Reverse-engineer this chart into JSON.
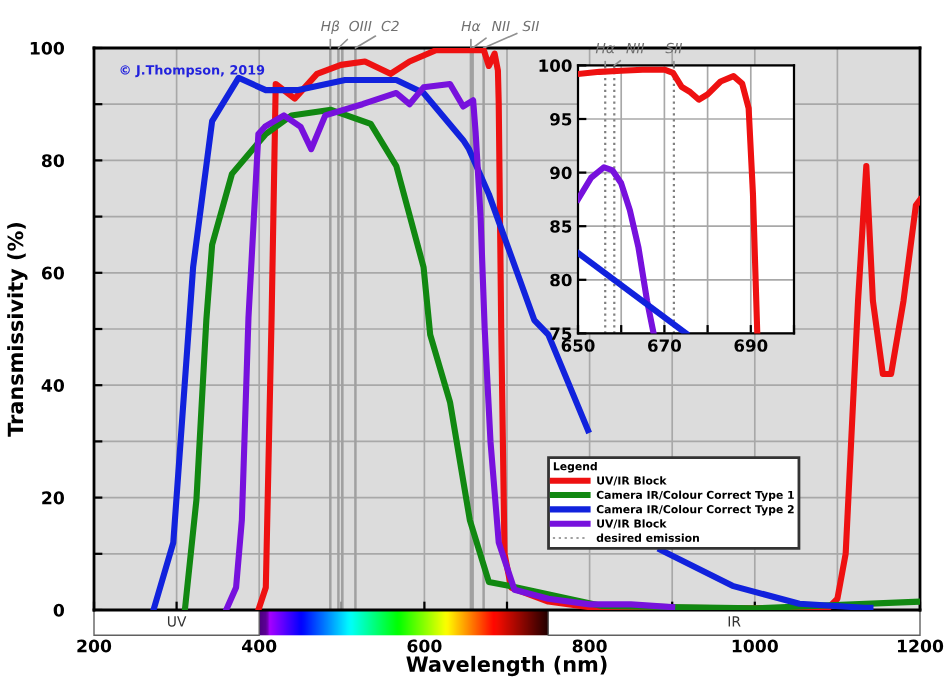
{
  "chart_data": [
    {
      "type": "line",
      "xlabel": "Wavelength (nm)",
      "ylabel": "Transmissivity (%)",
      "legend_title": "Legend",
      "legend": "bottom right",
      "grid": true,
      "annotations": [
        "© J.Thompson, 2019",
        "UV",
        "IR",
        "desired emission"
      ],
      "xlim": [
        200,
        1200
      ],
      "ylim": [
        0,
        100
      ],
      "xticks": [
        200,
        {
          "value": 300,
          "label": null
        },
        400,
        {
          "value": 500,
          "label": null
        },
        600,
        {
          "value": 700,
          "label": null
        },
        800,
        {
          "value": 900,
          "label": null
        },
        1000,
        {
          "value": 1100,
          "label": null
        },
        1200
      ],
      "yticks": [
        0,
        {
          "value": 10,
          "label": null
        },
        20,
        {
          "value": 30,
          "label": null
        },
        40,
        {
          "value": 50,
          "label": null
        },
        60,
        {
          "value": 70,
          "label": null
        },
        80,
        {
          "value": 90,
          "label": null
        },
        100
      ],
      "ref_lines": [
        {
          "axis": "x",
          "value": 486.1,
          "label": "Hβ",
          "color": "#a0a0a0",
          "line_style": "solid"
        },
        {
          "axis": "x",
          "value": 495.9,
          "label": "OIII",
          "color": "#a0a0a0",
          "line_style": "solid"
        },
        {
          "axis": "x",
          "value": 500.7,
          "label": null,
          "color": "#a0a0a0",
          "line_style": "solid"
        },
        {
          "axis": "x",
          "value": 516.5,
          "label": "C2",
          "color": "#a0a0a0",
          "line_style": "solid"
        },
        {
          "axis": "x",
          "value": 656.3,
          "label": "Hα",
          "color": "#a0a0a0",
          "line_style": "solid"
        },
        {
          "axis": "x",
          "value": 658.4,
          "label": "NII",
          "color": "#a0a0a0",
          "line_style": "solid"
        },
        {
          "axis": "x",
          "value": 671.7,
          "label": "SII",
          "color": "#a0a0a0",
          "line_style": "solid"
        }
      ],
      "series": [
        {
          "name": "UV/IR Block",
          "color": "#ee1111",
          "x": [
            399,
            408,
            415,
            420,
            443,
            470,
            499,
            528,
            559,
            582,
            614,
            654,
            672,
            678,
            685,
            689,
            690,
            693,
            697,
            705,
            750,
            800,
            1000,
            1090,
            1100,
            1110,
            1125,
            1135,
            1143,
            1155,
            1165,
            1180,
            1195,
            1200
          ],
          "values": [
            0,
            4,
            52,
            93.6,
            91,
            95.4,
            97,
            97.6,
            95.4,
            97.6,
            99.6,
            99.6,
            99.6,
            96.8,
            99,
            96,
            90,
            50,
            10,
            4,
            1.5,
            0.5,
            0.3,
            0.5,
            2,
            10,
            55,
            79,
            55,
            42,
            42,
            55,
            72,
            73
          ]
        },
        {
          "name": "Camera IR/Colour Correct Type 1",
          "color": "#118811",
          "x": [
            310,
            324,
            336,
            343,
            367,
            408,
            439,
            487,
            535,
            566,
            599,
            607,
            631,
            655,
            678,
            702,
            815,
            1000,
            1200
          ],
          "values": [
            0,
            19.6,
            51.6,
            65,
            77.6,
            84.7,
            88,
            89,
            86.5,
            79,
            61,
            49,
            37,
            16,
            5,
            4.3,
            0.7,
            0.3,
            1.5
          ]
        },
        {
          "name": "Camera IR/Colour Correct Type 2",
          "color": "#1122dd",
          "x": [
            272,
            296,
            320,
            343,
            375,
            408,
            446,
            504,
            566,
            599,
            647,
            654,
            678,
            733,
            750,
            798,
            830,
            886,
            973,
            1054,
            1133,
            1140
          ],
          "values": [
            0,
            12,
            61,
            87,
            94.7,
            92.5,
            92.5,
            94.3,
            94.3,
            92,
            83.6,
            82,
            74,
            51.6,
            49,
            32,
            null,
            10.7,
            4.3,
            1.1,
            0.4,
            0.4
          ]
        },
        {
          "name": "UV/IR Block",
          "color": "#7711dd",
          "x": [
            360,
            372,
            379,
            387,
            399,
            407,
            430,
            450,
            463,
            480,
            502,
            525,
            566,
            582,
            599,
            631,
            647,
            659,
            662,
            668,
            673,
            680,
            690,
            709,
            750,
            800,
            850,
            900
          ],
          "values": [
            0,
            4,
            16,
            52,
            84.7,
            86,
            88,
            86,
            82,
            88,
            89,
            90,
            92,
            90,
            93,
            93.6,
            89.6,
            90.7,
            85,
            70,
            50,
            30,
            12,
            3.6,
            2,
            1,
            1,
            0.5
          ]
        }
      ]
    },
    {
      "type": "line",
      "grid": true,
      "xlim": [
        650,
        700
      ],
      "ylim": [
        75,
        100
      ],
      "xticks": [
        650,
        {
          "value": 660,
          "label": null
        },
        670,
        {
          "value": 680,
          "label": null
        },
        690,
        {
          "value": 700,
          "label": null
        }
      ],
      "yticks": [
        75,
        80,
        85,
        90,
        95,
        100
      ],
      "ref_lines": [
        {
          "axis": "x",
          "value": 656.3,
          "label": "Hα",
          "color": "#808080",
          "line_style": "dotted"
        },
        {
          "axis": "x",
          "value": 658.4,
          "label": "NII",
          "color": "#808080",
          "line_style": "dotted"
        },
        {
          "axis": "x",
          "value": 672.2,
          "label": "SII",
          "color": "#808080",
          "line_style": "dotted"
        }
      ],
      "series": [
        {
          "color": "#ee1111",
          "x": [
            650,
            655,
            660,
            665,
            670,
            672,
            674,
            676,
            678,
            680,
            683,
            686,
            688,
            689.5,
            690.5,
            691.5
          ],
          "values": [
            99.2,
            99.4,
            99.5,
            99.6,
            99.6,
            99.3,
            98,
            97.5,
            96.8,
            97.3,
            98.5,
            99,
            98.3,
            96,
            88,
            75
          ]
        },
        {
          "color": "#7711dd",
          "x": [
            650,
            653,
            656,
            658,
            660,
            662,
            664,
            666,
            667.5
          ],
          "values": [
            87.5,
            89.5,
            90.5,
            90.2,
            89,
            86.5,
            83,
            78,
            75
          ]
        },
        {
          "color": "#1122dd",
          "x": [
            650,
            675
          ],
          "values": [
            82.5,
            75
          ]
        }
      ]
    }
  ]
}
